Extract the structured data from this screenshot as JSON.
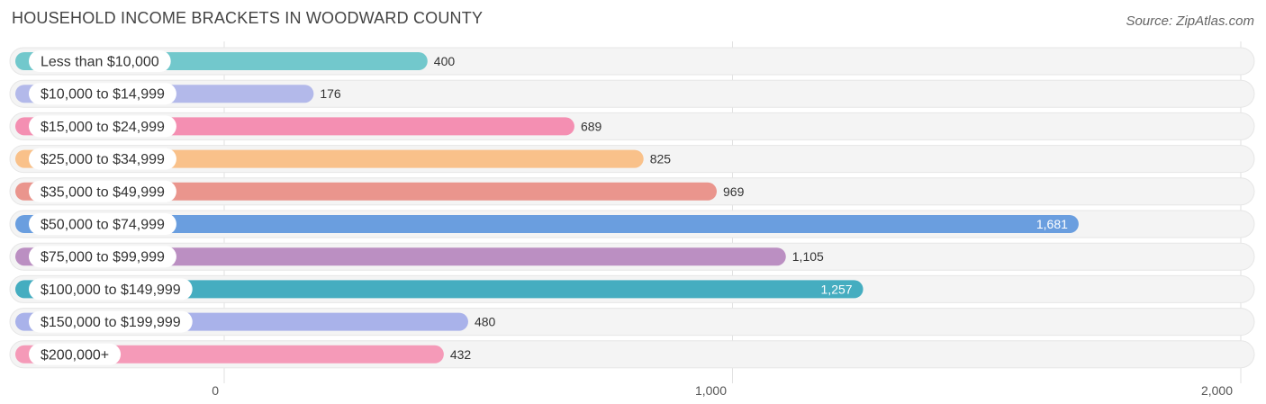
{
  "header": {
    "title": "HOUSEHOLD INCOME BRACKETS IN WOODWARD COUNTY",
    "source": "Source: ZipAtlas.com"
  },
  "chart_data": {
    "type": "bar",
    "orientation": "horizontal",
    "title": "HOUSEHOLD INCOME BRACKETS IN WOODWARD COUNTY",
    "categories": [
      "Less than $10,000",
      "$10,000 to $14,999",
      "$15,000 to $24,999",
      "$25,000 to $34,999",
      "$35,000 to $49,999",
      "$50,000 to $74,999",
      "$75,000 to $99,999",
      "$100,000 to $149,999",
      "$150,000 to $199,999",
      "$200,000+"
    ],
    "values": [
      400,
      176,
      689,
      825,
      969,
      1681,
      1105,
      1257,
      480,
      432
    ],
    "value_labels": [
      "400",
      "176",
      "689",
      "825",
      "969",
      "1,681",
      "1,105",
      "1,257",
      "480",
      "432"
    ],
    "colors": [
      "#72c8cc",
      "#b3b9ea",
      "#f48fb2",
      "#f9c18a",
      "#ea958d",
      "#6a9edf",
      "#bb8fc2",
      "#45adc0",
      "#a9b2ea",
      "#f59ab8"
    ],
    "xlim": [
      0,
      2000
    ],
    "xticks": [
      0,
      1000,
      2000
    ],
    "xtick_labels": [
      "0",
      "1,000",
      "2,000"
    ],
    "grid": true,
    "xlabel": "",
    "ylabel": ""
  }
}
